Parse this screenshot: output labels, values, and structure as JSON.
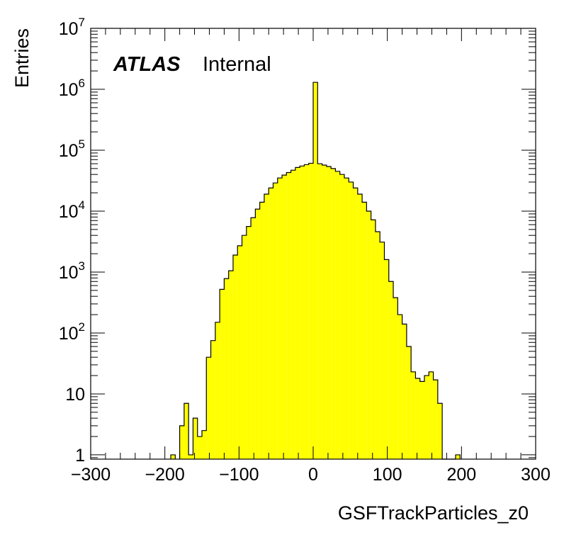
{
  "chart_data": {
    "type": "histogram",
    "title": "",
    "xlabel": "GSFTrackParticles_z0",
    "ylabel": "Entries",
    "xlim": [
      -300,
      300
    ],
    "ylim": [
      0.85,
      10000000
    ],
    "ylog": true,
    "bin_width": 6,
    "fill_color": "#ffff00",
    "line_color": "#000000",
    "labels": {
      "experiment": "ATLAS",
      "status": "Internal"
    },
    "x_ticks": [
      {
        "value": -300,
        "label": "−300"
      },
      {
        "value": -200,
        "label": "−200"
      },
      {
        "value": -100,
        "label": "−100"
      },
      {
        "value": 0,
        "label": "0"
      },
      {
        "value": 100,
        "label": "100"
      },
      {
        "value": 200,
        "label": "200"
      },
      {
        "value": 300,
        "label": "300"
      }
    ],
    "y_ticks": [
      {
        "value": 1,
        "base": "1",
        "exp": ""
      },
      {
        "value": 10,
        "base": "10",
        "exp": ""
      },
      {
        "value": 100,
        "base": "10",
        "exp": "2"
      },
      {
        "value": 1000,
        "base": "10",
        "exp": "3"
      },
      {
        "value": 10000,
        "base": "10",
        "exp": "4"
      },
      {
        "value": 100000,
        "base": "10",
        "exp": "5"
      },
      {
        "value": 1000000,
        "base": "10",
        "exp": "6"
      },
      {
        "value": 10000000,
        "base": "10",
        "exp": "7"
      }
    ],
    "bins": [
      {
        "x_low": -192,
        "count": 1
      },
      {
        "x_low": -180,
        "count": 3
      },
      {
        "x_low": -174,
        "count": 7
      },
      {
        "x_low": -168,
        "count": 1
      },
      {
        "x_low": -162,
        "count": 4
      },
      {
        "x_low": -156,
        "count": 2
      },
      {
        "x_low": -150,
        "count": 2.5
      },
      {
        "x_low": -144,
        "count": 40
      },
      {
        "x_low": -138,
        "count": 75
      },
      {
        "x_low": -132,
        "count": 150
      },
      {
        "x_low": -126,
        "count": 520
      },
      {
        "x_low": -120,
        "count": 780
      },
      {
        "x_low": -114,
        "count": 1050
      },
      {
        "x_low": -108,
        "count": 1900
      },
      {
        "x_low": -102,
        "count": 2700
      },
      {
        "x_low": -96,
        "count": 4000
      },
      {
        "x_low": -90,
        "count": 5600
      },
      {
        "x_low": -84,
        "count": 7800
      },
      {
        "x_low": -78,
        "count": 10800
      },
      {
        "x_low": -72,
        "count": 14000
      },
      {
        "x_low": -66,
        "count": 19000
      },
      {
        "x_low": -60,
        "count": 24000
      },
      {
        "x_low": -54,
        "count": 29000
      },
      {
        "x_low": -48,
        "count": 35000
      },
      {
        "x_low": -42,
        "count": 39000
      },
      {
        "x_low": -36,
        "count": 43000
      },
      {
        "x_low": -30,
        "count": 47000
      },
      {
        "x_low": -24,
        "count": 52000
      },
      {
        "x_low": -18,
        "count": 55000
      },
      {
        "x_low": -12,
        "count": 58000
      },
      {
        "x_low": -6,
        "count": 61000
      },
      {
        "x_low": 0,
        "count": 1300000
      },
      {
        "x_low": 6,
        "count": 60000
      },
      {
        "x_low": 12,
        "count": 57000
      },
      {
        "x_low": 18,
        "count": 54000
      },
      {
        "x_low": 24,
        "count": 50000
      },
      {
        "x_low": 30,
        "count": 45000
      },
      {
        "x_low": 36,
        "count": 40000
      },
      {
        "x_low": 42,
        "count": 35000
      },
      {
        "x_low": 48,
        "count": 30000
      },
      {
        "x_low": 54,
        "count": 24000
      },
      {
        "x_low": 60,
        "count": 19000
      },
      {
        "x_low": 66,
        "count": 14000
      },
      {
        "x_low": 72,
        "count": 10000
      },
      {
        "x_low": 78,
        "count": 7200
      },
      {
        "x_low": 84,
        "count": 4600
      },
      {
        "x_low": 90,
        "count": 3100
      },
      {
        "x_low": 96,
        "count": 1600
      },
      {
        "x_low": 102,
        "count": 700
      },
      {
        "x_low": 108,
        "count": 380
      },
      {
        "x_low": 114,
        "count": 200
      },
      {
        "x_low": 120,
        "count": 140
      },
      {
        "x_low": 126,
        "count": 60
      },
      {
        "x_low": 132,
        "count": 23
      },
      {
        "x_low": 138,
        "count": 18
      },
      {
        "x_low": 144,
        "count": 16
      },
      {
        "x_low": 150,
        "count": 20
      },
      {
        "x_low": 156,
        "count": 23
      },
      {
        "x_low": 162,
        "count": 17
      },
      {
        "x_low": 168,
        "count": 7
      },
      {
        "x_low": 174,
        "count": 0
      },
      {
        "x_low": 180,
        "count": 0
      },
      {
        "x_low": 186,
        "count": 0
      },
      {
        "x_low": 192,
        "count": 1
      }
    ]
  }
}
